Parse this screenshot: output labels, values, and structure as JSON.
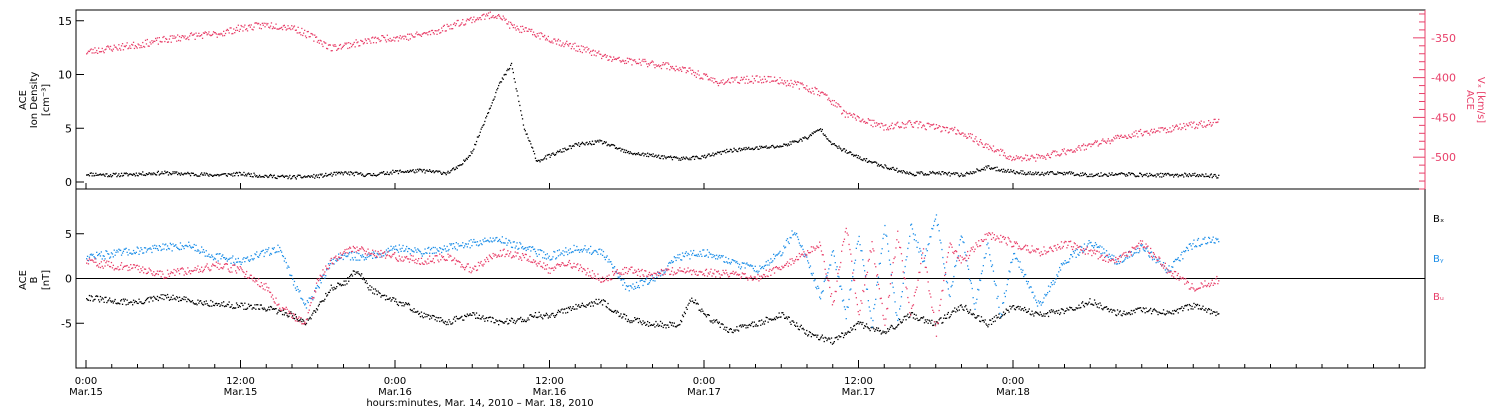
{
  "chart_data": [
    {
      "type": "scatter",
      "panel": "top",
      "ylabel_left": [
        "ACE",
        "Ion Density",
        "[cm⁻³]"
      ],
      "ylabel_right": [
        "ACE",
        "Vₓ [km/s]"
      ],
      "xlim_hours": [
        0,
        104
      ],
      "ylim_left": [
        0,
        16
      ],
      "yticks_left": [
        "0",
        "5",
        "10",
        "15"
      ],
      "yaxis_right_invert": true,
      "ylim_right": [
        -540,
        -315
      ],
      "yticks_right": [
        "-350",
        "-400",
        "-450",
        "-500"
      ],
      "series": [
        {
          "name": "",
          "color": "#000000",
          "axis": "left",
          "points": [
            [
              0,
              0.8
            ],
            [
              2,
              0.7
            ],
            [
              4,
              0.8
            ],
            [
              6,
              0.9
            ],
            [
              8,
              0.8
            ],
            [
              10,
              0.7
            ],
            [
              12,
              0.8
            ],
            [
              14,
              0.6
            ],
            [
              16,
              0.5
            ],
            [
              18,
              0.6
            ],
            [
              20,
              0.9
            ],
            [
              22,
              0.7
            ],
            [
              24,
              1
            ],
            [
              26,
              1.1
            ],
            [
              28,
              0.9
            ],
            [
              29,
              1.5
            ],
            [
              30,
              3
            ],
            [
              31,
              6
            ],
            [
              32,
              9
            ],
            [
              33,
              11
            ],
            [
              33.5,
              8
            ],
            [
              34,
              5
            ],
            [
              35,
              2
            ],
            [
              36,
              2.5
            ],
            [
              38,
              3.5
            ],
            [
              40,
              3.8
            ],
            [
              42,
              2.8
            ],
            [
              44,
              2.5
            ],
            [
              46,
              2.2
            ],
            [
              48,
              2.4
            ],
            [
              50,
              3
            ],
            [
              52,
              3.2
            ],
            [
              54,
              3.4
            ],
            [
              56,
              4.2
            ],
            [
              57,
              5
            ],
            [
              58,
              3.5
            ],
            [
              60,
              2.3
            ],
            [
              62,
              1.5
            ],
            [
              64,
              0.8
            ],
            [
              66,
              0.9
            ],
            [
              68,
              0.7
            ],
            [
              70,
              1.4
            ],
            [
              72,
              1
            ],
            [
              74,
              0.8
            ],
            [
              76,
              0.9
            ],
            [
              78,
              0.7
            ],
            [
              80,
              0.8
            ],
            [
              82,
              0.7
            ],
            [
              84,
              0.7
            ],
            [
              86,
              0.7
            ],
            [
              88,
              0.6
            ]
          ]
        },
        {
          "name": "",
          "color": "#e8406a",
          "axis": "right",
          "points": [
            [
              0,
              -367
            ],
            [
              2,
              -362
            ],
            [
              4,
              -358
            ],
            [
              6,
              -352
            ],
            [
              8,
              -347
            ],
            [
              10,
              -345
            ],
            [
              12,
              -337
            ],
            [
              14,
              -333
            ],
            [
              16,
              -336
            ],
            [
              18,
              -352
            ],
            [
              19,
              -362
            ],
            [
              21,
              -356
            ],
            [
              23,
              -350
            ],
            [
              25,
              -348
            ],
            [
              27,
              -342
            ],
            [
              29,
              -330
            ],
            [
              31,
              -322
            ],
            [
              32,
              -320
            ],
            [
              33,
              -335
            ],
            [
              35,
              -345
            ],
            [
              37,
              -356
            ],
            [
              39,
              -366
            ],
            [
              41,
              -377
            ],
            [
              43,
              -380
            ],
            [
              45,
              -384
            ],
            [
              47,
              -392
            ],
            [
              49,
              -405
            ],
            [
              51,
              -402
            ],
            [
              53,
              -401
            ],
            [
              55,
              -407
            ],
            [
              57,
              -418
            ],
            [
              58,
              -430
            ],
            [
              59,
              -446
            ],
            [
              60,
              -451
            ],
            [
              62,
              -462
            ],
            [
              64,
              -457
            ],
            [
              66,
              -462
            ],
            [
              68,
              -468
            ],
            [
              70,
              -486
            ],
            [
              72,
              -501
            ],
            [
              74,
              -500
            ],
            [
              76,
              -492
            ],
            [
              78,
              -484
            ],
            [
              80,
              -476
            ],
            [
              82,
              -468
            ],
            [
              84,
              -464
            ],
            [
              86,
              -459
            ],
            [
              88,
              -455
            ]
          ]
        }
      ]
    },
    {
      "type": "scatter",
      "panel": "bottom",
      "ylabel_left": [
        "ACE",
        "B",
        "[nT]"
      ],
      "xlim_hours": [
        0,
        104
      ],
      "ylim": [
        -10,
        10
      ],
      "yticks": [
        "-5",
        "0",
        "5"
      ],
      "zero_line": true,
      "series": [
        {
          "name": "Bₓ",
          "color": "#000000",
          "points": [
            [
              0,
              -2
            ],
            [
              2,
              -2.5
            ],
            [
              4,
              -2.6
            ],
            [
              6,
              -2
            ],
            [
              8,
              -2.4
            ],
            [
              10,
              -2.8
            ],
            [
              12,
              -3
            ],
            [
              14,
              -3.3
            ],
            [
              16,
              -4
            ],
            [
              17,
              -5
            ],
            [
              18,
              -3
            ],
            [
              19,
              -1
            ],
            [
              20,
              -0.5
            ],
            [
              21,
              1
            ],
            [
              22,
              -1
            ],
            [
              23,
              -2
            ],
            [
              25,
              -3
            ],
            [
              26,
              -4
            ],
            [
              28,
              -4.8
            ],
            [
              30,
              -4
            ],
            [
              32,
              -4.8
            ],
            [
              34,
              -4.5
            ],
            [
              35,
              -4
            ],
            [
              36,
              -4.2
            ],
            [
              38,
              -3
            ],
            [
              40,
              -2.5
            ],
            [
              42,
              -4.5
            ],
            [
              44,
              -5
            ],
            [
              46,
              -5.2
            ],
            [
              47,
              -2
            ],
            [
              48,
              -4
            ],
            [
              50,
              -5.8
            ],
            [
              52,
              -5
            ],
            [
              54,
              -4
            ],
            [
              56,
              -6
            ],
            [
              58,
              -7
            ],
            [
              60,
              -5
            ],
            [
              62,
              -6
            ],
            [
              64,
              -4
            ],
            [
              66,
              -5
            ],
            [
              68,
              -3
            ],
            [
              70,
              -5
            ],
            [
              72,
              -3
            ],
            [
              74,
              -4
            ],
            [
              76,
              -3.5
            ],
            [
              78,
              -2.5
            ],
            [
              80,
              -3.8
            ],
            [
              82,
              -3.5
            ],
            [
              84,
              -3.8
            ],
            [
              86,
              -3
            ],
            [
              88,
              -4
            ]
          ]
        },
        {
          "name": "Bᵧ",
          "color": "#1e8fe8",
          "points": [
            [
              0,
              2.5
            ],
            [
              2,
              2.8
            ],
            [
              4,
              3.2
            ],
            [
              6,
              3.5
            ],
            [
              8,
              3.8
            ],
            [
              10,
              2.5
            ],
            [
              12,
              2
            ],
            [
              14,
              3
            ],
            [
              15,
              3.5
            ],
            [
              16,
              0
            ],
            [
              17,
              -3
            ],
            [
              18,
              -1
            ],
            [
              19,
              2
            ],
            [
              20,
              2.6
            ],
            [
              22,
              2.5
            ],
            [
              24,
              3.5
            ],
            [
              26,
              3
            ],
            [
              28,
              3.5
            ],
            [
              30,
              4
            ],
            [
              32,
              4.5
            ],
            [
              34,
              3.5
            ],
            [
              36,
              2.5
            ],
            [
              38,
              3.5
            ],
            [
              40,
              3
            ],
            [
              41,
              1
            ],
            [
              42,
              -1
            ],
            [
              44,
              0
            ],
            [
              46,
              2.5
            ],
            [
              48,
              3
            ],
            [
              50,
              2
            ],
            [
              52,
              1
            ],
            [
              54,
              3
            ],
            [
              55,
              5.5
            ],
            [
              56,
              2
            ],
            [
              57,
              -2
            ],
            [
              58,
              3
            ],
            [
              59,
              -4
            ],
            [
              60,
              5
            ],
            [
              61,
              -5
            ],
            [
              62,
              6
            ],
            [
              63,
              -5
            ],
            [
              64,
              6
            ],
            [
              65,
              2
            ],
            [
              66,
              7
            ],
            [
              67,
              -2
            ],
            [
              68,
              5
            ],
            [
              69,
              -3
            ],
            [
              70,
              4
            ],
            [
              71,
              -4
            ],
            [
              72,
              3
            ],
            [
              74,
              -3
            ],
            [
              76,
              2
            ],
            [
              78,
              4
            ],
            [
              80,
              2
            ],
            [
              82,
              3.5
            ],
            [
              84,
              1
            ],
            [
              86,
              4
            ],
            [
              88,
              4.5
            ]
          ]
        },
        {
          "name": "Bᵤ",
          "color": "#e8406a",
          "points": [
            [
              0,
              2
            ],
            [
              2,
              1.5
            ],
            [
              4,
              1.2
            ],
            [
              6,
              0.5
            ],
            [
              8,
              1
            ],
            [
              10,
              1.5
            ],
            [
              12,
              1
            ],
            [
              14,
              -1
            ],
            [
              15,
              -3
            ],
            [
              16,
              -4
            ],
            [
              17,
              -5
            ],
            [
              18,
              0
            ],
            [
              19,
              2
            ],
            [
              20,
              3
            ],
            [
              21,
              3.5
            ],
            [
              22,
              3
            ],
            [
              24,
              2.5
            ],
            [
              26,
              2
            ],
            [
              28,
              2.5
            ],
            [
              30,
              1
            ],
            [
              32,
              3
            ],
            [
              34,
              2.5
            ],
            [
              36,
              1
            ],
            [
              37,
              2
            ],
            [
              38,
              1.5
            ],
            [
              40,
              0
            ],
            [
              42,
              1
            ],
            [
              44,
              0.5
            ],
            [
              46,
              1
            ],
            [
              48,
              0.8
            ],
            [
              50,
              0.5
            ],
            [
              52,
              0
            ],
            [
              54,
              1.5
            ],
            [
              56,
              3
            ],
            [
              57,
              4
            ],
            [
              58,
              -3
            ],
            [
              59,
              6
            ],
            [
              60,
              -4
            ],
            [
              61,
              4
            ],
            [
              62,
              -5
            ],
            [
              63,
              5
            ],
            [
              64,
              -4
            ],
            [
              65,
              3
            ],
            [
              66,
              -6
            ],
            [
              67,
              4
            ],
            [
              68,
              2
            ],
            [
              70,
              5
            ],
            [
              72,
              4
            ],
            [
              74,
              3
            ],
            [
              76,
              4
            ],
            [
              78,
              3
            ],
            [
              80,
              2
            ],
            [
              82,
              4
            ],
            [
              84,
              1
            ],
            [
              86,
              -1
            ],
            [
              88,
              0
            ]
          ]
        }
      ]
    }
  ],
  "x_axis": {
    "ticks": [
      {
        "h": 0,
        "time": "0:00",
        "date": "Mar.15"
      },
      {
        "h": 12,
        "time": "12:00",
        "date": "Mar.15"
      },
      {
        "h": 24,
        "time": "0:00",
        "date": "Mar.16"
      },
      {
        "h": 36,
        "time": "12:00",
        "date": "Mar.16"
      },
      {
        "h": 48,
        "time": "0:00",
        "date": "Mar.17"
      },
      {
        "h": 60,
        "time": "12:00",
        "date": "Mar.17"
      },
      {
        "h": 72,
        "time": "0:00",
        "date": "Mar.18"
      }
    ],
    "label": "hours:minutes, Mar. 14, 2010 – Mar. 18, 2010"
  },
  "legend": [
    {
      "name": "Bₓ",
      "color": "#000000"
    },
    {
      "name": "Bᵧ",
      "color": "#1e8fe8"
    },
    {
      "name": "Bᵤ",
      "color": "#e8406a"
    }
  ]
}
